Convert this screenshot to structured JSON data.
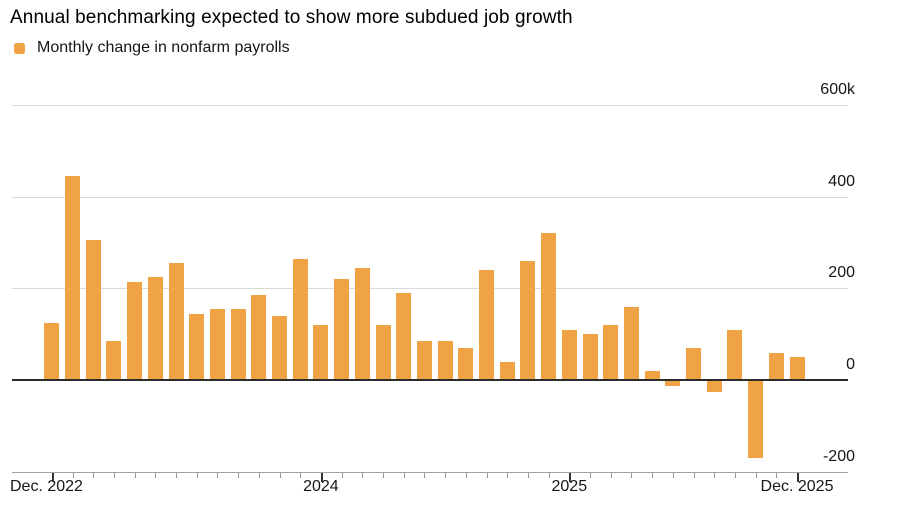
{
  "title": "Annual benchmarking expected to show more subdued job growth",
  "legend": {
    "label": "Monthly change in nonfarm payrolls"
  },
  "chart_data": {
    "type": "bar",
    "title": "Annual benchmarking expected to show more subdued job growth",
    "series_name": "Monthly change in nonfarm payrolls",
    "unit": "thousands of jobs (k)",
    "categories": [
      "Dec 2022",
      "Jan 2023",
      "Feb 2023",
      "Mar 2023",
      "Apr 2023",
      "May 2023",
      "Jun 2023",
      "Jul 2023",
      "Aug 2023",
      "Sep 2023",
      "Oct 2023",
      "Nov 2023",
      "Dec 2023",
      "Jan 2024",
      "Feb 2024",
      "Mar 2024",
      "Apr 2024",
      "May 2024",
      "Jun 2024",
      "Jul 2024",
      "Aug 2024",
      "Sep 2024",
      "Oct 2024",
      "Nov 2024",
      "Dec 2024",
      "Jan 2025",
      "Feb 2025",
      "Mar 2025",
      "Apr 2025",
      "May 2025",
      "Jun 2025",
      "Jul 2025",
      "Aug 2025",
      "Sep 2025",
      "Oct 2025",
      "Nov 2025",
      "Dec 2025"
    ],
    "values": [
      125,
      445,
      305,
      85,
      215,
      225,
      255,
      145,
      155,
      155,
      185,
      140,
      265,
      120,
      220,
      245,
      120,
      190,
      85,
      85,
      70,
      240,
      40,
      260,
      320,
      110,
      100,
      120,
      160,
      20,
      -13,
      70,
      -25,
      110,
      -170,
      60,
      50
    ],
    "ylim": [
      -200,
      600
    ],
    "grid": "horizontal",
    "legend_position": "top-left",
    "y_axis": {
      "ticks": [
        {
          "label": "600k",
          "value": 600
        },
        {
          "label": "400",
          "value": 400
        },
        {
          "label": "200",
          "value": 200
        },
        {
          "label": "0",
          "value": 0
        },
        {
          "label": "-200",
          "value": -200
        }
      ]
    },
    "x_axis": {
      "ticks": [
        {
          "label": "Dec. 2022",
          "month_index": 0,
          "anchor": "left"
        },
        {
          "label": "2024",
          "month_index": 13,
          "anchor": "center"
        },
        {
          "label": "2025",
          "month_index": 25,
          "anchor": "center"
        },
        {
          "label": "Dec. 2025",
          "month_index": 36,
          "anchor": "center"
        }
      ],
      "major_tick_months": [
        0,
        13,
        25,
        36
      ]
    },
    "colors": {
      "bar": "#F0A345",
      "grid": "#DADADA",
      "zero_line": "#2B2B2B",
      "axis_line": "#A3A3A3",
      "tick": "#999999",
      "tick_major": "#333333",
      "text": "#161616"
    }
  }
}
